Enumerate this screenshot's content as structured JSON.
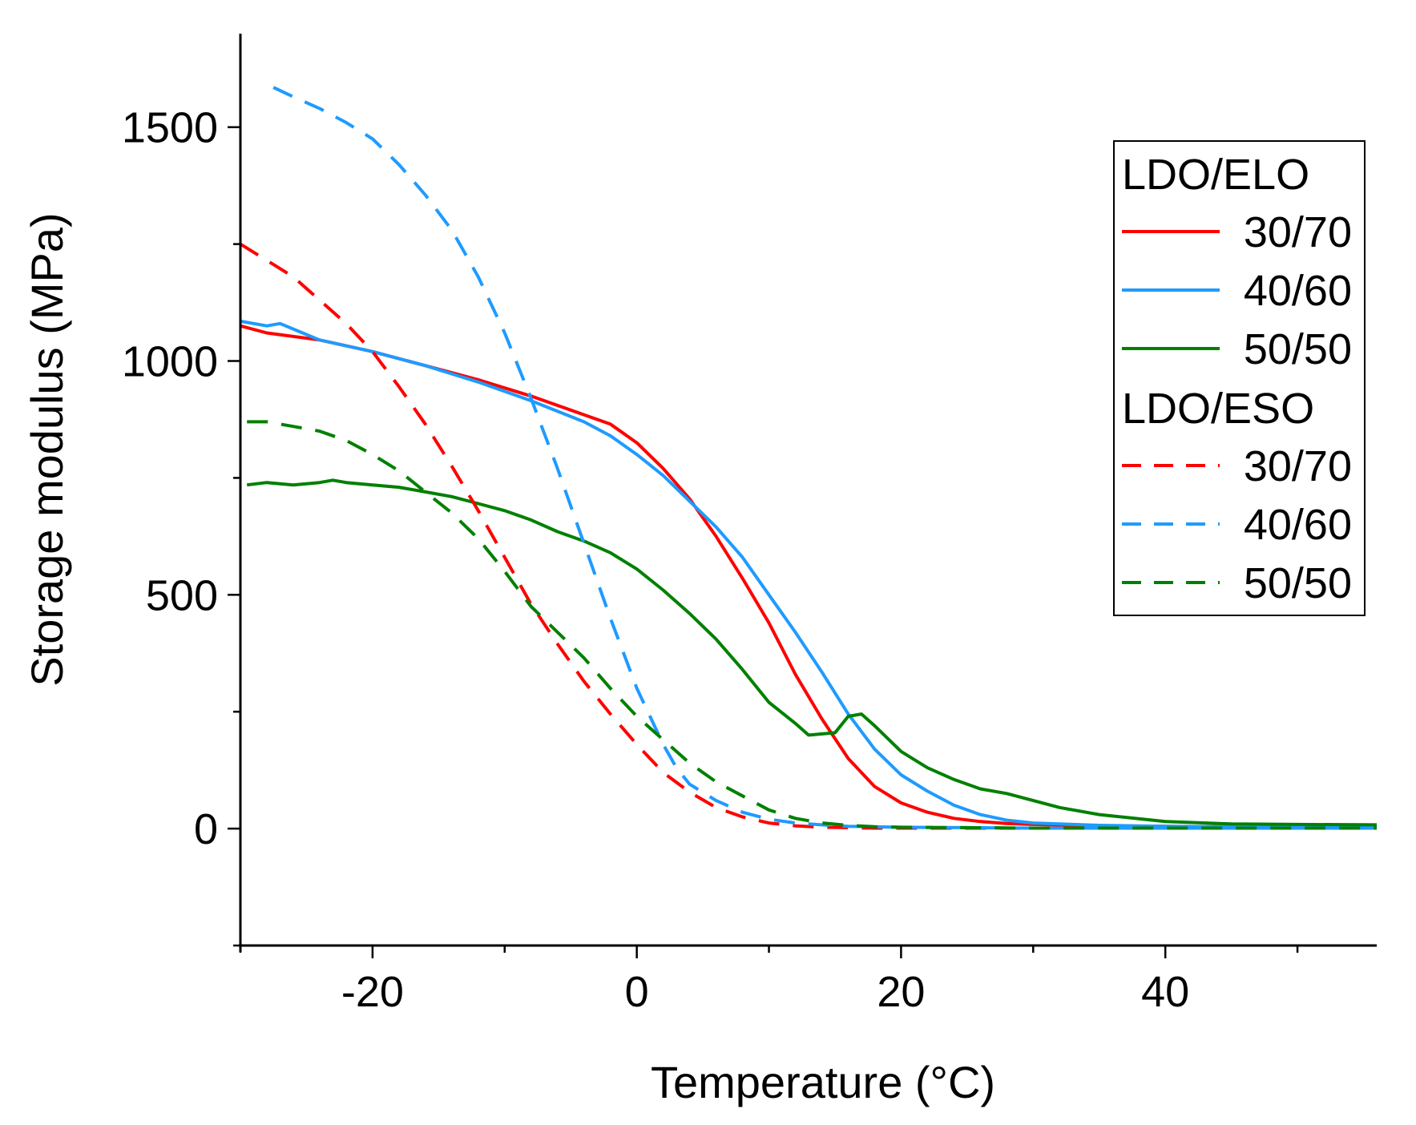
{
  "chart_data": {
    "type": "line",
    "title": "",
    "xlabel": "Temperature (°C)",
    "ylabel": "Storage modulus (MPa)",
    "xlim": [
      -30,
      56
    ],
    "ylim": [
      -250,
      1700
    ],
    "x_ticks": [
      -20,
      0,
      20,
      40
    ],
    "x_tick_labels": [
      "-20",
      "0",
      "20",
      "40"
    ],
    "y_ticks": [
      0,
      500,
      1000,
      1500
    ],
    "y_tick_labels": [
      "0",
      "500",
      "1000",
      "1500"
    ],
    "legend": {
      "position": "top-right",
      "groups": [
        {
          "title": "LDO/ELO",
          "entries": [
            "30/70",
            "40/60",
            "50/50"
          ]
        },
        {
          "title": "LDO/ESO",
          "entries": [
            "30/70",
            "40/60",
            "50/50"
          ]
        }
      ]
    },
    "series": [
      {
        "name": "LDO/ELO 30/70",
        "group": "LDO/ELO",
        "label": "30/70",
        "color": "#ff0000",
        "dash": "solid",
        "x": [
          -31,
          -28,
          -24,
          -20,
          -16,
          -12,
          -8,
          -4,
          -2,
          0,
          2,
          4,
          6,
          8,
          10,
          12,
          14,
          16,
          18,
          20,
          22,
          24,
          26,
          28,
          30,
          35,
          40,
          45,
          50,
          56
        ],
        "y": [
          1075,
          1060,
          1045,
          1020,
          990,
          960,
          925,
          885,
          865,
          825,
          770,
          705,
          625,
          535,
          440,
          330,
          235,
          150,
          90,
          55,
          35,
          22,
          15,
          11,
          9,
          6,
          5,
          4,
          4,
          4
        ]
      },
      {
        "name": "LDO/ELO 40/60",
        "group": "LDO/ELO",
        "label": "40/60",
        "color": "#1e9bff",
        "dash": "solid",
        "x": [
          -31,
          -28,
          -27,
          -24,
          -20,
          -16,
          -12,
          -8,
          -4,
          -2,
          0,
          2,
          4,
          6,
          8,
          10,
          12,
          14,
          16,
          18,
          20,
          22,
          24,
          26,
          28,
          30,
          35,
          40,
          45,
          50,
          56
        ],
        "y": [
          1085,
          1075,
          1080,
          1045,
          1020,
          990,
          955,
          915,
          870,
          840,
          800,
          755,
          700,
          645,
          580,
          500,
          420,
          335,
          245,
          170,
          115,
          80,
          50,
          30,
          18,
          12,
          7,
          5,
          4,
          3,
          3
        ]
      },
      {
        "name": "LDO/ELO 50/50",
        "group": "LDO/ELO",
        "label": "50/50",
        "color": "#008000",
        "dash": "solid",
        "x": [
          -29.5,
          -28,
          -26,
          -24,
          -23,
          -22,
          -20,
          -18,
          -16,
          -14,
          -12,
          -10,
          -8,
          -6,
          -4,
          -2,
          0,
          2,
          4,
          6,
          8,
          10,
          12,
          13,
          15,
          16,
          17,
          18,
          20,
          22,
          24,
          26,
          28,
          30,
          32,
          35,
          40,
          45,
          50,
          56
        ],
        "y": [
          735,
          740,
          735,
          740,
          745,
          740,
          735,
          730,
          720,
          710,
          695,
          680,
          660,
          635,
          615,
          590,
          555,
          510,
          460,
          405,
          340,
          270,
          225,
          200,
          205,
          240,
          245,
          220,
          165,
          130,
          105,
          85,
          75,
          60,
          45,
          30,
          15,
          10,
          9,
          8
        ]
      },
      {
        "name": "LDO/ESO 30/70",
        "group": "LDO/ESO",
        "label": "30/70",
        "color": "#ff0000",
        "dash": "dashed",
        "x": [
          -31,
          -28,
          -26,
          -24,
          -22,
          -20,
          -18,
          -16,
          -14,
          -12,
          -10,
          -8,
          -6,
          -4,
          -2,
          0,
          2,
          4,
          6,
          8,
          10,
          12,
          14,
          16,
          18,
          20,
          25,
          30,
          40,
          50,
          56
        ],
        "y": [
          1250,
          1215,
          1180,
          1130,
          1080,
          1020,
          945,
          865,
          775,
          680,
          580,
          480,
          395,
          315,
          245,
          180,
          120,
          78,
          45,
          25,
          12,
          6,
          3,
          2,
          1,
          1,
          1,
          1,
          1,
          1,
          1
        ]
      },
      {
        "name": "LDO/ESO 40/60",
        "group": "LDO/ESO",
        "label": "40/60",
        "color": "#1e9bff",
        "dash": "dashed",
        "x": [
          -27.5,
          -26,
          -24,
          -22,
          -20,
          -18,
          -16,
          -14,
          -12,
          -10,
          -8,
          -6,
          -4,
          -2,
          0,
          2,
          3,
          4,
          6,
          8,
          10,
          12,
          14,
          16,
          20,
          25,
          30,
          40,
          50,
          56
        ],
        "y": [
          1585,
          1565,
          1540,
          1510,
          1475,
          1420,
          1355,
          1280,
          1180,
          1060,
          920,
          770,
          610,
          450,
          300,
          180,
          130,
          95,
          60,
          35,
          20,
          12,
          8,
          5,
          3,
          2,
          1,
          1,
          1,
          1
        ]
      },
      {
        "name": "LDO/ESO 50/50",
        "group": "LDO/ESO",
        "label": "50/50",
        "color": "#008000",
        "dash": "dashed",
        "x": [
          -29.5,
          -28,
          -26,
          -24,
          -22,
          -20,
          -18,
          -16,
          -14,
          -12,
          -10,
          -8,
          -6,
          -4,
          -2,
          0,
          2,
          4,
          6,
          8,
          10,
          12,
          14,
          16,
          18,
          20,
          25,
          30,
          40,
          50,
          56
        ],
        "y": [
          870,
          870,
          860,
          850,
          830,
          800,
          765,
          720,
          675,
          620,
          550,
          475,
          420,
          365,
          300,
          240,
          190,
          140,
          100,
          70,
          40,
          22,
          12,
          7,
          4,
          3,
          2,
          1,
          1,
          1,
          1
        ]
      }
    ]
  }
}
